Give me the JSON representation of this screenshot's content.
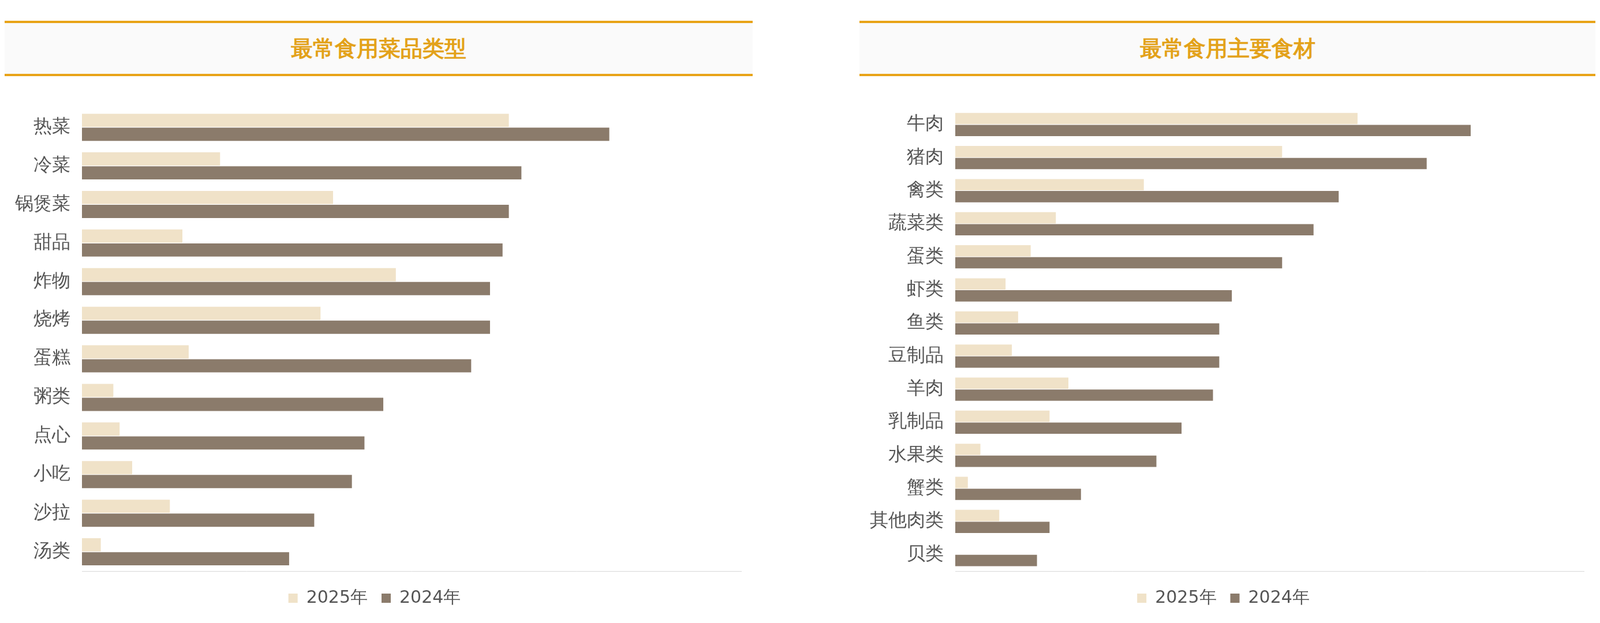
{
  "chart_data": [
    {
      "type": "bar",
      "title": "最常食用菜品类型",
      "orientation": "horizontal",
      "categories": [
        "热菜",
        "冷菜",
        "锅煲菜",
        "甜品",
        "炸物",
        "烧烤",
        "蛋糕",
        "粥类",
        "点心",
        "小吃",
        "沙拉",
        "汤类"
      ],
      "series": [
        {
          "name": "2025年",
          "color": "#f0e2c8",
          "values": [
            68,
            22,
            40,
            16,
            50,
            38,
            17,
            5,
            6,
            8,
            14,
            3
          ]
        },
        {
          "name": "2024年",
          "color": "#8b7b6b",
          "values": [
            84,
            70,
            68,
            67,
            65,
            65,
            62,
            48,
            45,
            43,
            37,
            33
          ]
        }
      ],
      "xlim": [
        0,
        105
      ],
      "grid": false,
      "legend": "bottom",
      "tick_labels": "y"
    },
    {
      "type": "bar",
      "title": "最常食用主要食材",
      "orientation": "horizontal",
      "categories": [
        "牛肉",
        "猪肉",
        "禽类",
        "蔬菜类",
        "蛋类",
        "虾类",
        "鱼类",
        "豆制品",
        "羊肉",
        "乳制品",
        "水果类",
        "蟹类",
        "其他肉类",
        "贝类"
      ],
      "series": [
        {
          "name": "2025年",
          "color": "#f0e2c8",
          "values": [
            64,
            52,
            30,
            16,
            12,
            8,
            10,
            9,
            18,
            15,
            4,
            2,
            7,
            0
          ]
        },
        {
          "name": "2024年",
          "color": "#8b7b6b",
          "values": [
            82,
            75,
            61,
            57,
            52,
            44,
            42,
            42,
            41,
            36,
            32,
            20,
            15,
            13
          ]
        }
      ],
      "xlim": [
        0,
        100
      ],
      "grid": false,
      "legend": "bottom",
      "tick_labels": "y"
    }
  ]
}
